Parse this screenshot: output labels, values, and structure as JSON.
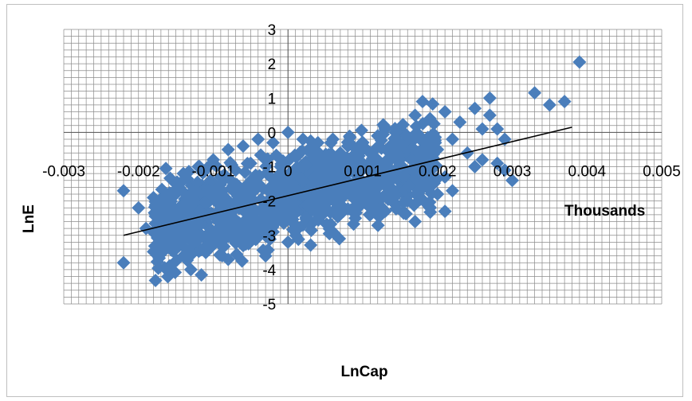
{
  "chart_data": {
    "type": "scatter",
    "title": "",
    "xlabel": "LnCap",
    "ylabel": "LnE",
    "x_unit_label": "Thousands",
    "xlim": [
      -0.003,
      0.005
    ],
    "ylim": [
      -5,
      3
    ],
    "x_ticks": [
      "-0.003",
      "-0.002",
      "-0.001",
      "0",
      "0.001",
      "0.002",
      "0.003",
      "0.004",
      "0.005"
    ],
    "y_ticks": [
      "3",
      "2",
      "1",
      "0",
      "-1",
      "-2",
      "-3",
      "-4",
      "-5"
    ],
    "grid": true,
    "marker": "diamond",
    "marker_color": "#4a7ebb",
    "trendline": {
      "x0": -0.0022,
      "y0": -3.0,
      "x1": 0.0038,
      "y1": 0.15,
      "color": "#000000"
    },
    "series": [
      {
        "points": [
          [
            -0.0022,
            -3.8
          ],
          [
            -0.0022,
            -1.7
          ],
          [
            -0.002,
            -2.2
          ],
          [
            -0.0019,
            -2.8
          ],
          [
            -0.0018,
            -1.9
          ],
          [
            -0.0017,
            -2.5
          ],
          [
            -0.0016,
            -2.0
          ],
          [
            -0.0015,
            -1.5
          ],
          [
            -0.0015,
            -3.3
          ],
          [
            -0.0014,
            -1.2
          ],
          [
            -0.0014,
            -3.6
          ],
          [
            -0.0013,
            -2.2
          ],
          [
            -0.0013,
            -4.0
          ],
          [
            -0.0012,
            -1.0
          ],
          [
            -0.0012,
            -2.9
          ],
          [
            -0.0011,
            -1.6
          ],
          [
            -0.0011,
            -3.5
          ],
          [
            -0.001,
            -0.8
          ],
          [
            -0.001,
            -2.4
          ],
          [
            -0.0009,
            -1.3
          ],
          [
            -0.0009,
            -3.1
          ],
          [
            -0.0008,
            -0.5
          ],
          [
            -0.0008,
            -2.0
          ],
          [
            -0.0008,
            -3.7
          ],
          [
            -0.0007,
            -1.1
          ],
          [
            -0.0007,
            -2.7
          ],
          [
            -0.0006,
            -0.4
          ],
          [
            -0.0006,
            -1.8
          ],
          [
            -0.0006,
            -3.3
          ],
          [
            -0.0005,
            -0.9
          ],
          [
            -0.0005,
            -2.4
          ],
          [
            -0.0004,
            -0.2
          ],
          [
            -0.0004,
            -1.5
          ],
          [
            -0.0004,
            -3.0
          ],
          [
            -0.0003,
            -0.8
          ],
          [
            -0.0003,
            -2.2
          ],
          [
            -0.0003,
            -3.6
          ],
          [
            -0.0002,
            -0.3
          ],
          [
            -0.0002,
            -1.7
          ],
          [
            -0.0002,
            -2.9
          ],
          [
            -0.0001,
            -1.0
          ],
          [
            -0.0001,
            -2.4
          ],
          [
            0.0,
            0.0
          ],
          [
            0.0,
            -1.4
          ],
          [
            0.0,
            -3.2
          ],
          [
            0.0001,
            -0.7
          ],
          [
            0.0001,
            -2.0
          ],
          [
            0.0002,
            -0.2
          ],
          [
            0.0002,
            -1.3
          ],
          [
            0.0002,
            -2.7
          ],
          [
            0.0003,
            -0.6
          ],
          [
            0.0003,
            -1.9
          ],
          [
            0.0004,
            -0.3
          ],
          [
            0.0004,
            -1.4
          ],
          [
            0.0004,
            -2.5
          ],
          [
            0.0005,
            -0.8
          ],
          [
            0.0005,
            -2.1
          ],
          [
            0.0006,
            -0.2
          ],
          [
            0.0006,
            -1.5
          ],
          [
            0.0006,
            -2.9
          ],
          [
            0.0007,
            -0.6
          ],
          [
            0.0007,
            -2.2
          ],
          [
            0.0008,
            -0.4
          ],
          [
            0.0008,
            -1.6
          ],
          [
            0.0009,
            -0.9
          ],
          [
            0.0009,
            -2.5
          ],
          [
            0.001,
            -0.3
          ],
          [
            0.001,
            -1.7
          ],
          [
            0.0011,
            -0.6
          ],
          [
            0.0011,
            -2.2
          ],
          [
            0.0012,
            -0.1
          ],
          [
            0.0012,
            -1.5
          ],
          [
            0.0013,
            0.1
          ],
          [
            0.0013,
            -1.0
          ],
          [
            0.0013,
            -2.3
          ],
          [
            0.0014,
            -0.4
          ],
          [
            0.0014,
            -1.8
          ],
          [
            0.0015,
            0.0
          ],
          [
            0.0015,
            -1.2
          ],
          [
            0.0016,
            -0.6
          ],
          [
            0.0016,
            -2.0
          ],
          [
            0.0017,
            0.5
          ],
          [
            0.0017,
            -1.6
          ],
          [
            0.0017,
            -2.6
          ],
          [
            0.0018,
            0.9
          ],
          [
            0.0018,
            -0.8
          ],
          [
            0.0019,
            0.4
          ],
          [
            0.0019,
            -1.1
          ],
          [
            0.0019,
            -2.2
          ],
          [
            0.002,
            -0.5
          ],
          [
            0.002,
            -1.8
          ],
          [
            0.0021,
            0.6
          ],
          [
            0.0021,
            -2.3
          ],
          [
            0.0021,
            -1.3
          ],
          [
            0.0022,
            -0.2
          ],
          [
            0.0022,
            -1.7
          ],
          [
            0.0023,
            0.3
          ],
          [
            0.0024,
            -0.6
          ],
          [
            0.0025,
            -1.0
          ],
          [
            0.0025,
            0.7
          ],
          [
            0.0026,
            0.1
          ],
          [
            0.0026,
            -0.8
          ],
          [
            0.0027,
            1.0
          ],
          [
            0.0027,
            0.5
          ],
          [
            0.0028,
            0.1
          ],
          [
            0.0028,
            -0.9
          ],
          [
            0.0029,
            -0.2
          ],
          [
            0.0029,
            -1.1
          ],
          [
            0.003,
            -1.4
          ],
          [
            0.0033,
            1.15
          ],
          [
            0.0035,
            0.8
          ],
          [
            0.0037,
            0.9
          ],
          [
            0.0039,
            2.05
          ]
        ]
      }
    ]
  }
}
